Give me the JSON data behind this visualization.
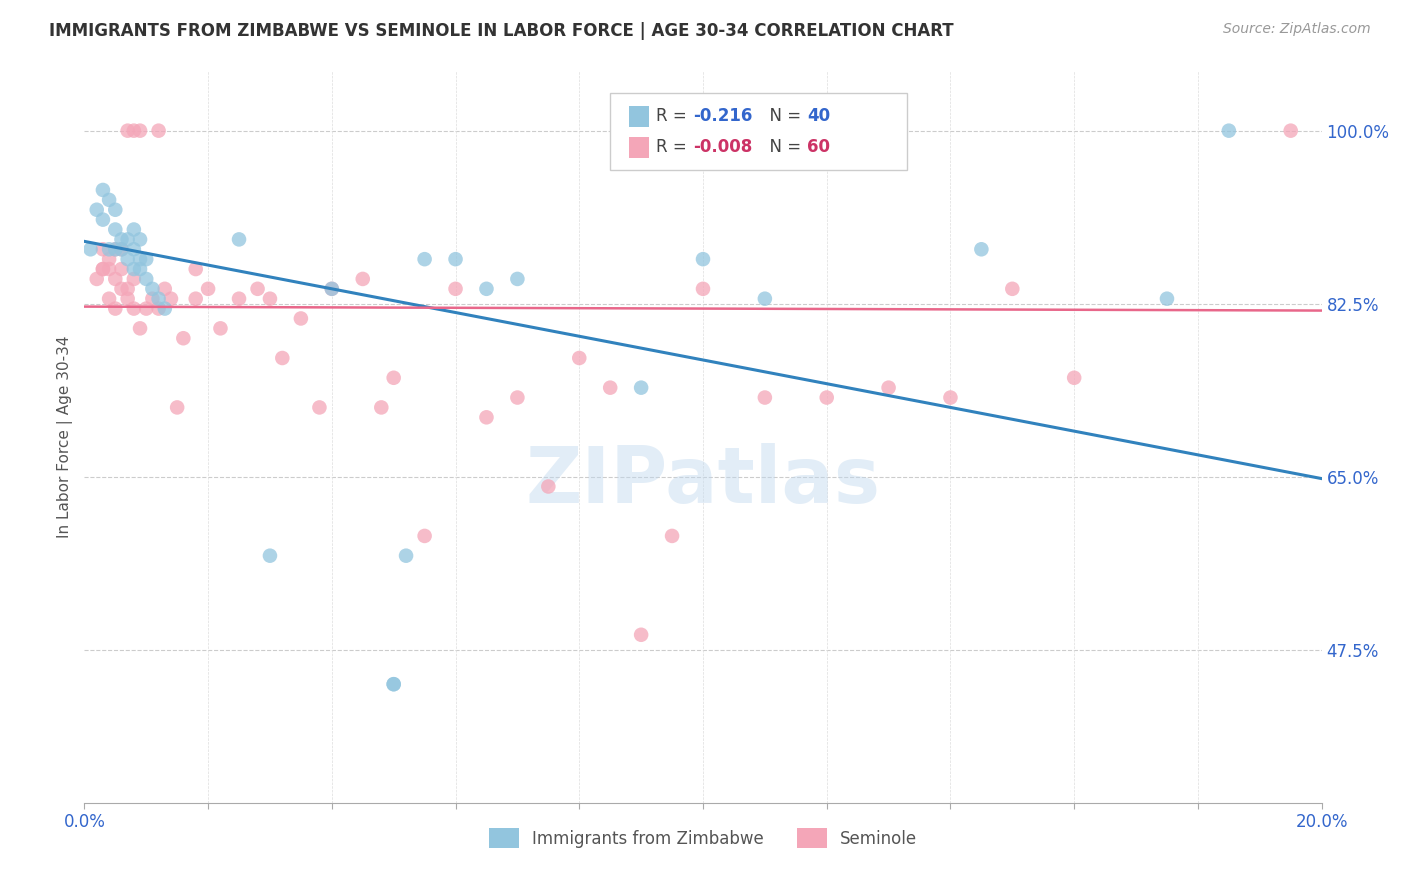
{
  "title": "IMMIGRANTS FROM ZIMBABWE VS SEMINOLE IN LABOR FORCE | AGE 30-34 CORRELATION CHART",
  "source": "Source: ZipAtlas.com",
  "ylabel": "In Labor Force | Age 30-34",
  "xlim": [
    0.0,
    0.2
  ],
  "ylim": [
    0.32,
    1.06
  ],
  "xticks": [
    0.0,
    0.02,
    0.04,
    0.06,
    0.08,
    0.1,
    0.12,
    0.14,
    0.16,
    0.18,
    0.2
  ],
  "xticklabels": [
    "0.0%",
    "",
    "",
    "",
    "",
    "",
    "",
    "",
    "",
    "",
    "20.0%"
  ],
  "yticks_right": [
    0.475,
    0.65,
    0.825,
    1.0
  ],
  "ytick_right_labels": [
    "47.5%",
    "65.0%",
    "82.5%",
    "100.0%"
  ],
  "blue_color": "#92c5de",
  "pink_color": "#f4a6b8",
  "blue_line_color": "#3182bd",
  "pink_line_color": "#e8678a",
  "watermark": "ZIPatlas",
  "blue_x": [
    0.001,
    0.002,
    0.003,
    0.003,
    0.004,
    0.004,
    0.005,
    0.005,
    0.005,
    0.006,
    0.006,
    0.007,
    0.007,
    0.008,
    0.008,
    0.008,
    0.009,
    0.009,
    0.009,
    0.01,
    0.01,
    0.011,
    0.012,
    0.013,
    0.025,
    0.03,
    0.04,
    0.055,
    0.06,
    0.065,
    0.07,
    0.09,
    0.1,
    0.11,
    0.145,
    0.175,
    0.185,
    0.05,
    0.05,
    0.052
  ],
  "blue_y": [
    0.88,
    0.92,
    0.91,
    0.94,
    0.88,
    0.93,
    0.88,
    0.9,
    0.92,
    0.88,
    0.89,
    0.87,
    0.89,
    0.86,
    0.88,
    0.9,
    0.86,
    0.87,
    0.89,
    0.85,
    0.87,
    0.84,
    0.83,
    0.82,
    0.89,
    0.57,
    0.84,
    0.87,
    0.87,
    0.84,
    0.85,
    0.74,
    0.87,
    0.83,
    0.88,
    0.83,
    1.0,
    0.44,
    0.44,
    0.57
  ],
  "pink_x": [
    0.002,
    0.003,
    0.003,
    0.004,
    0.004,
    0.005,
    0.005,
    0.006,
    0.006,
    0.007,
    0.007,
    0.008,
    0.008,
    0.009,
    0.01,
    0.011,
    0.012,
    0.013,
    0.014,
    0.015,
    0.016,
    0.018,
    0.02,
    0.022,
    0.025,
    0.028,
    0.03,
    0.032,
    0.035,
    0.038,
    0.04,
    0.045,
    0.048,
    0.05,
    0.055,
    0.06,
    0.065,
    0.07,
    0.075,
    0.08,
    0.085,
    0.09,
    0.095,
    0.1,
    0.11,
    0.12,
    0.13,
    0.14,
    0.15,
    0.16,
    0.003,
    0.004,
    0.005,
    0.006,
    0.007,
    0.008,
    0.009,
    0.012,
    0.018,
    0.195
  ],
  "pink_y": [
    0.85,
    0.86,
    0.88,
    0.83,
    0.86,
    0.82,
    0.85,
    0.84,
    0.86,
    0.83,
    0.84,
    0.82,
    0.85,
    0.8,
    0.82,
    0.83,
    0.82,
    0.84,
    0.83,
    0.72,
    0.79,
    0.83,
    0.84,
    0.8,
    0.83,
    0.84,
    0.83,
    0.77,
    0.81,
    0.72,
    0.84,
    0.85,
    0.72,
    0.75,
    0.59,
    0.84,
    0.71,
    0.73,
    0.64,
    0.77,
    0.74,
    0.49,
    0.59,
    0.84,
    0.73,
    0.73,
    0.74,
    0.73,
    0.84,
    0.75,
    0.86,
    0.87,
    0.88,
    0.88,
    1.0,
    1.0,
    1.0,
    1.0,
    0.86,
    1.0
  ],
  "blue_trend_x": [
    0.0,
    0.2
  ],
  "blue_trend_y": [
    0.888,
    0.648
  ],
  "pink_trend_x": [
    0.0,
    0.2
  ],
  "pink_trend_y": [
    0.822,
    0.818
  ]
}
